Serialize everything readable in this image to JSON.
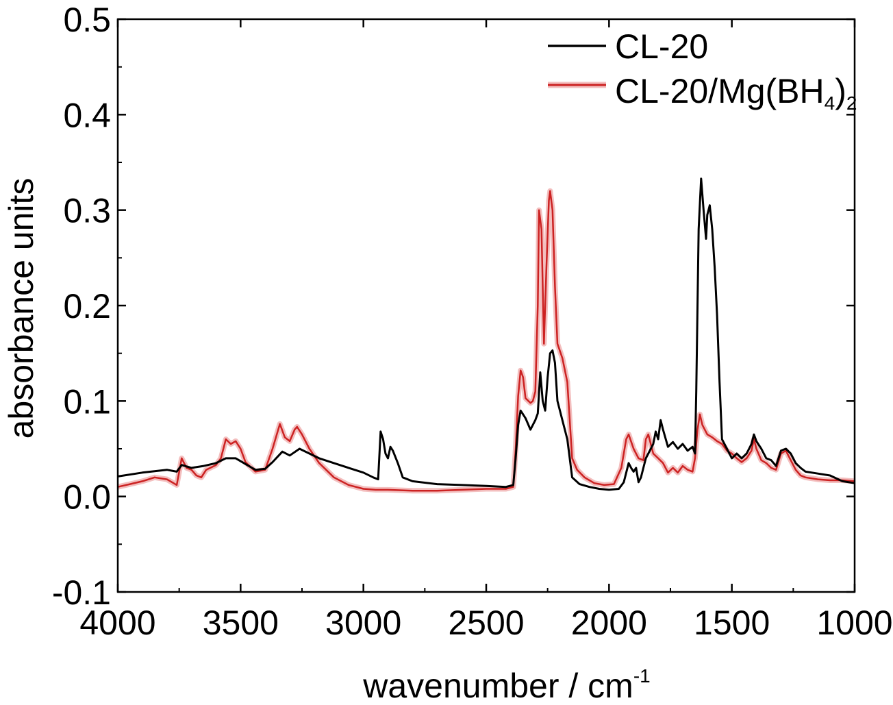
{
  "chart_data": {
    "type": "line",
    "title": "",
    "xlabel": "wavenumber / cm",
    "xlabel_sup": "-1",
    "ylabel": "absorbance units",
    "xlim": [
      4000,
      1000
    ],
    "ylim": [
      -0.1,
      0.5
    ],
    "x_ticks": [
      4000,
      3500,
      3000,
      2500,
      2000,
      1500,
      1000
    ],
    "x_tick_labels": [
      "4000",
      "3500",
      "3000",
      "2500",
      "2000",
      "1500",
      "1000"
    ],
    "y_ticks": [
      -0.1,
      0.0,
      0.1,
      0.2,
      0.3,
      0.4,
      0.5
    ],
    "y_tick_labels": [
      "-0.1",
      "0.0",
      "0.1",
      "0.2",
      "0.3",
      "0.4",
      "0.5"
    ],
    "grid": false,
    "legend_position": "top-right",
    "legend": [
      {
        "label": "CL-20",
        "color": "#000000"
      },
      {
        "label": "CL-20/Mg(BH",
        "sub1": "4",
        "mid": ")",
        "sub2": "2",
        "color": "#cc2222"
      }
    ],
    "series": [
      {
        "name": "CL-20",
        "color": "#000000",
        "points": [
          [
            4000,
            0.021
          ],
          [
            3900,
            0.025
          ],
          [
            3800,
            0.028
          ],
          [
            3760,
            0.026
          ],
          [
            3740,
            0.033
          ],
          [
            3700,
            0.03
          ],
          [
            3650,
            0.032
          ],
          [
            3600,
            0.035
          ],
          [
            3560,
            0.04
          ],
          [
            3520,
            0.04
          ],
          [
            3480,
            0.034
          ],
          [
            3440,
            0.028
          ],
          [
            3400,
            0.029
          ],
          [
            3370,
            0.036
          ],
          [
            3330,
            0.047
          ],
          [
            3300,
            0.043
          ],
          [
            3260,
            0.05
          ],
          [
            3220,
            0.045
          ],
          [
            3180,
            0.04
          ],
          [
            3120,
            0.035
          ],
          [
            3060,
            0.03
          ],
          [
            3000,
            0.025
          ],
          [
            2960,
            0.02
          ],
          [
            2940,
            0.018
          ],
          [
            2930,
            0.068
          ],
          [
            2920,
            0.06
          ],
          [
            2910,
            0.045
          ],
          [
            2900,
            0.04
          ],
          [
            2890,
            0.052
          ],
          [
            2880,
            0.048
          ],
          [
            2860,
            0.035
          ],
          [
            2840,
            0.02
          ],
          [
            2800,
            0.016
          ],
          [
            2700,
            0.013
          ],
          [
            2600,
            0.012
          ],
          [
            2500,
            0.011
          ],
          [
            2420,
            0.01
          ],
          [
            2390,
            0.012
          ],
          [
            2380,
            0.04
          ],
          [
            2370,
            0.075
          ],
          [
            2360,
            0.09
          ],
          [
            2350,
            0.086
          ],
          [
            2340,
            0.082
          ],
          [
            2320,
            0.07
          ],
          [
            2300,
            0.08
          ],
          [
            2290,
            0.087
          ],
          [
            2280,
            0.13
          ],
          [
            2270,
            0.1
          ],
          [
            2260,
            0.09
          ],
          [
            2250,
            0.125
          ],
          [
            2240,
            0.15
          ],
          [
            2230,
            0.153
          ],
          [
            2220,
            0.14
          ],
          [
            2210,
            0.1
          ],
          [
            2190,
            0.08
          ],
          [
            2170,
            0.06
          ],
          [
            2150,
            0.02
          ],
          [
            2120,
            0.013
          ],
          [
            2080,
            0.01
          ],
          [
            2040,
            0.008
          ],
          [
            2000,
            0.007
          ],
          [
            1960,
            0.008
          ],
          [
            1940,
            0.015
          ],
          [
            1920,
            0.035
          ],
          [
            1910,
            0.03
          ],
          [
            1900,
            0.026
          ],
          [
            1890,
            0.03
          ],
          [
            1880,
            0.015
          ],
          [
            1870,
            0.02
          ],
          [
            1860,
            0.03
          ],
          [
            1850,
            0.04
          ],
          [
            1840,
            0.045
          ],
          [
            1820,
            0.055
          ],
          [
            1810,
            0.068
          ],
          [
            1800,
            0.06
          ],
          [
            1790,
            0.08
          ],
          [
            1780,
            0.07
          ],
          [
            1760,
            0.052
          ],
          [
            1740,
            0.057
          ],
          [
            1720,
            0.05
          ],
          [
            1700,
            0.055
          ],
          [
            1680,
            0.048
          ],
          [
            1660,
            0.052
          ],
          [
            1650,
            0.045
          ],
          [
            1645,
            0.11
          ],
          [
            1635,
            0.28
          ],
          [
            1625,
            0.333
          ],
          [
            1615,
            0.3
          ],
          [
            1605,
            0.27
          ],
          [
            1600,
            0.295
          ],
          [
            1590,
            0.305
          ],
          [
            1580,
            0.28
          ],
          [
            1570,
            0.24
          ],
          [
            1560,
            0.19
          ],
          [
            1550,
            0.12
          ],
          [
            1540,
            0.06
          ],
          [
            1520,
            0.05
          ],
          [
            1500,
            0.04
          ],
          [
            1480,
            0.045
          ],
          [
            1460,
            0.04
          ],
          [
            1440,
            0.045
          ],
          [
            1420,
            0.055
          ],
          [
            1410,
            0.065
          ],
          [
            1400,
            0.058
          ],
          [
            1380,
            0.05
          ],
          [
            1360,
            0.04
          ],
          [
            1340,
            0.038
          ],
          [
            1320,
            0.032
          ],
          [
            1300,
            0.048
          ],
          [
            1280,
            0.05
          ],
          [
            1260,
            0.045
          ],
          [
            1240,
            0.035
          ],
          [
            1220,
            0.03
          ],
          [
            1200,
            0.026
          ],
          [
            1150,
            0.024
          ],
          [
            1100,
            0.022
          ],
          [
            1050,
            0.016
          ],
          [
            1000,
            0.014
          ]
        ]
      },
      {
        "name": "CL-20/Mg(BH4)2",
        "color": "#cc2222",
        "points": [
          [
            4000,
            0.01
          ],
          [
            3950,
            0.013
          ],
          [
            3900,
            0.016
          ],
          [
            3850,
            0.02
          ],
          [
            3800,
            0.018
          ],
          [
            3760,
            0.012
          ],
          [
            3740,
            0.04
          ],
          [
            3720,
            0.03
          ],
          [
            3700,
            0.028
          ],
          [
            3680,
            0.022
          ],
          [
            3660,
            0.02
          ],
          [
            3640,
            0.028
          ],
          [
            3600,
            0.033
          ],
          [
            3580,
            0.04
          ],
          [
            3560,
            0.06
          ],
          [
            3540,
            0.055
          ],
          [
            3520,
            0.058
          ],
          [
            3500,
            0.05
          ],
          [
            3480,
            0.036
          ],
          [
            3440,
            0.026
          ],
          [
            3400,
            0.028
          ],
          [
            3370,
            0.05
          ],
          [
            3340,
            0.076
          ],
          [
            3320,
            0.062
          ],
          [
            3300,
            0.058
          ],
          [
            3280,
            0.07
          ],
          [
            3270,
            0.073
          ],
          [
            3250,
            0.065
          ],
          [
            3220,
            0.05
          ],
          [
            3180,
            0.035
          ],
          [
            3120,
            0.02
          ],
          [
            3060,
            0.012
          ],
          [
            3000,
            0.008
          ],
          [
            2950,
            0.007
          ],
          [
            2900,
            0.007
          ],
          [
            2800,
            0.006
          ],
          [
            2700,
            0.006
          ],
          [
            2600,
            0.007
          ],
          [
            2500,
            0.008
          ],
          [
            2420,
            0.008
          ],
          [
            2390,
            0.01
          ],
          [
            2380,
            0.05
          ],
          [
            2370,
            0.105
          ],
          [
            2360,
            0.132
          ],
          [
            2350,
            0.125
          ],
          [
            2340,
            0.103
          ],
          [
            2320,
            0.098
          ],
          [
            2310,
            0.1
          ],
          [
            2300,
            0.11
          ],
          [
            2290,
            0.2
          ],
          [
            2285,
            0.3
          ],
          [
            2275,
            0.28
          ],
          [
            2265,
            0.16
          ],
          [
            2255,
            0.24
          ],
          [
            2245,
            0.31
          ],
          [
            2240,
            0.32
          ],
          [
            2230,
            0.3
          ],
          [
            2220,
            0.22
          ],
          [
            2210,
            0.16
          ],
          [
            2190,
            0.145
          ],
          [
            2170,
            0.12
          ],
          [
            2150,
            0.04
          ],
          [
            2130,
            0.028
          ],
          [
            2100,
            0.02
          ],
          [
            2060,
            0.014
          ],
          [
            2020,
            0.012
          ],
          [
            1980,
            0.013
          ],
          [
            1950,
            0.03
          ],
          [
            1930,
            0.06
          ],
          [
            1920,
            0.065
          ],
          [
            1900,
            0.05
          ],
          [
            1880,
            0.04
          ],
          [
            1860,
            0.038
          ],
          [
            1850,
            0.06
          ],
          [
            1840,
            0.065
          ],
          [
            1820,
            0.045
          ],
          [
            1800,
            0.04
          ],
          [
            1780,
            0.035
          ],
          [
            1760,
            0.025
          ],
          [
            1740,
            0.03
          ],
          [
            1720,
            0.025
          ],
          [
            1700,
            0.032
          ],
          [
            1680,
            0.028
          ],
          [
            1660,
            0.026
          ],
          [
            1650,
            0.04
          ],
          [
            1640,
            0.07
          ],
          [
            1630,
            0.086
          ],
          [
            1620,
            0.075
          ],
          [
            1600,
            0.065
          ],
          [
            1580,
            0.062
          ],
          [
            1560,
            0.058
          ],
          [
            1540,
            0.055
          ],
          [
            1520,
            0.048
          ],
          [
            1500,
            0.045
          ],
          [
            1480,
            0.04
          ],
          [
            1460,
            0.036
          ],
          [
            1440,
            0.04
          ],
          [
            1420,
            0.048
          ],
          [
            1410,
            0.06
          ],
          [
            1400,
            0.05
          ],
          [
            1380,
            0.038
          ],
          [
            1360,
            0.035
          ],
          [
            1340,
            0.03
          ],
          [
            1320,
            0.028
          ],
          [
            1300,
            0.045
          ],
          [
            1280,
            0.048
          ],
          [
            1260,
            0.038
          ],
          [
            1240,
            0.028
          ],
          [
            1220,
            0.022
          ],
          [
            1200,
            0.02
          ],
          [
            1150,
            0.018
          ],
          [
            1100,
            0.017
          ],
          [
            1050,
            0.017
          ],
          [
            1000,
            0.016
          ]
        ]
      }
    ]
  }
}
